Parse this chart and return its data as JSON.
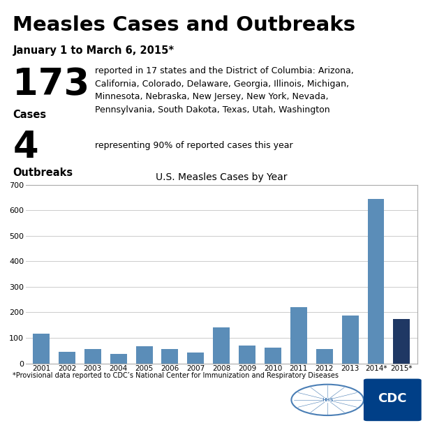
{
  "title": "Measles Cases and Outbreaks",
  "subtitle": "January 1 to March 6, 2015*",
  "cases_number": "173",
  "cases_label": "Cases",
  "cases_description": "reported in 17 states and the District of Columbia: Arizona,\nCalifornia, Colorado, Delaware, Georgia, Illinois, Michigan,\nMinnesota, Nebraska, New Jersey, New York, Nevada,\nPennsylvania, South Dakota, Texas, Utah, Washington",
  "outbreaks_number": "4",
  "outbreaks_label": "Outbreaks",
  "outbreaks_description": "representing 90% of reported cases this year",
  "chart_title": "U.S. Measles Cases by Year",
  "years": [
    "2001",
    "2002",
    "2003",
    "2004",
    "2005",
    "2006",
    "2007",
    "2008",
    "2009",
    "2010",
    "2011",
    "2012",
    "2013",
    "2014*",
    "2015*"
  ],
  "values": [
    116,
    44,
    56,
    37,
    66,
    55,
    43,
    140,
    71,
    63,
    220,
    55,
    187,
    644,
    173
  ],
  "bar_color_normal": "#5b8db8",
  "bar_color_highlight": "#1f3864",
  "footnote": "*Provisional data reported to CDC’s National Center for Immunization and Respiratory Diseases",
  "bg_color": "#ffffff",
  "chart_bg": "#ffffff",
  "ylim": [
    0,
    700
  ],
  "yticks": [
    0,
    100,
    200,
    300,
    400,
    500,
    600,
    700
  ]
}
